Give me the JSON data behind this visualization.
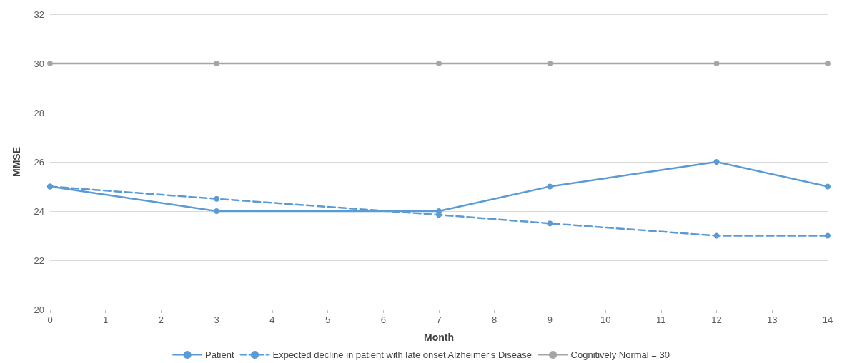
{
  "chart_data": {
    "type": "line",
    "xlabel": "Month",
    "ylabel": "MMSE",
    "xlim": [
      0,
      14
    ],
    "xticks": [
      0,
      1,
      2,
      3,
      4,
      5,
      6,
      7,
      8,
      9,
      10,
      11,
      12,
      13,
      14
    ],
    "ylim": [
      20,
      32
    ],
    "yticks": [
      20,
      22,
      24,
      26,
      28,
      30,
      32
    ],
    "grid": "y",
    "legend": "bottom",
    "marker": "circle",
    "series": [
      {
        "name": "Patient",
        "color": "#5b9bd5",
        "x": [
          0,
          3,
          7,
          9,
          12,
          14
        ],
        "values": [
          25,
          24,
          24,
          25,
          26,
          25
        ],
        "line_style": "solid"
      },
      {
        "name": "Expected decline in patient with late onset Alzheimer's Disease",
        "color": "#5b9bd5",
        "x": [
          0,
          3,
          7,
          9,
          12,
          14
        ],
        "values": [
          25,
          24.5,
          23.85,
          23.5,
          23,
          23
        ],
        "line_style": "dashed"
      },
      {
        "name": "Cognitively Normal = 30",
        "color": "#a5a5a5",
        "x": [
          0,
          3,
          7,
          9,
          12,
          14
        ],
        "values": [
          30,
          30,
          30,
          30,
          30,
          30
        ],
        "line_style": "solid"
      }
    ]
  }
}
